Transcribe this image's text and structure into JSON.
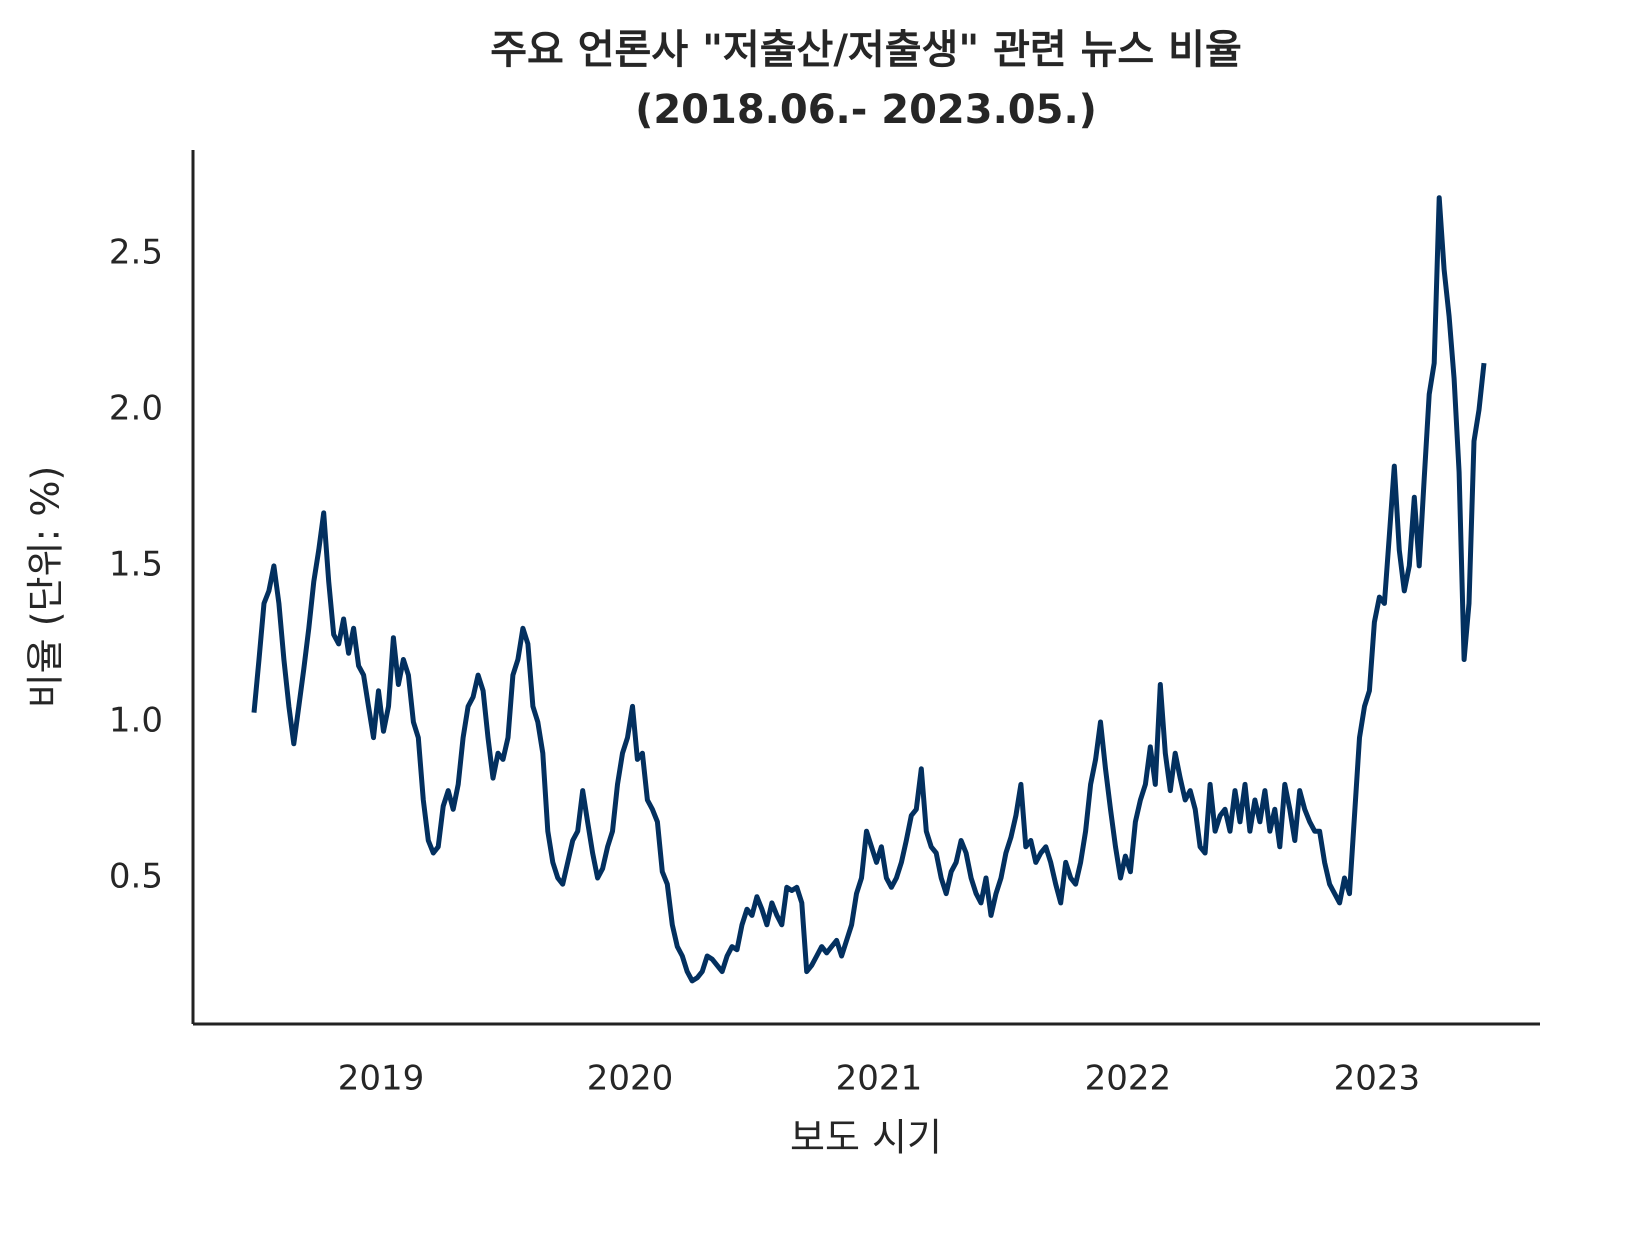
{
  "chart_data": {
    "type": "line",
    "title": "주요 언론사 \"저출산/저출생\" 관련 뉴스 비율",
    "subtitle": "(2018.06.- 2023.05.)",
    "x_label": "보도 시기",
    "y_label": "비율 (단위: %)",
    "color": "#03305f",
    "xlim": [
      2018.245,
      2023.655
    ],
    "xticks": [
      2019,
      2020,
      2021,
      2022,
      2023
    ],
    "ylim": [
      0.032,
      2.833
    ],
    "yticks": [
      0.5,
      {
        "value": 1,
        "label": "1.0"
      },
      1.5,
      {
        "value": 2,
        "label": "2.0"
      },
      2.5
    ],
    "grid": false,
    "x": [
      2018.49,
      2018.51,
      2018.53,
      2018.55,
      2018.57,
      2018.59,
      2018.61,
      2018.63,
      2018.65,
      2018.67,
      2018.69,
      2018.71,
      2018.73,
      2018.75,
      2018.77,
      2018.79,
      2018.81,
      2018.83,
      2018.85,
      2018.87,
      2018.89,
      2018.91,
      2018.93,
      2018.95,
      2018.97,
      2018.99,
      2019.01,
      2019.03,
      2019.05,
      2019.07,
      2019.09,
      2019.11,
      2019.13,
      2019.15,
      2019.17,
      2019.19,
      2019.21,
      2019.23,
      2019.25,
      2019.27,
      2019.29,
      2019.31,
      2019.33,
      2019.35,
      2019.37,
      2019.39,
      2019.41,
      2019.43,
      2019.45,
      2019.47,
      2019.49,
      2019.51,
      2019.53,
      2019.55,
      2019.57,
      2019.59,
      2019.61,
      2019.63,
      2019.65,
      2019.67,
      2019.69,
      2019.71,
      2019.73,
      2019.75,
      2019.77,
      2019.79,
      2019.81,
      2019.83,
      2019.85,
      2019.87,
      2019.89,
      2019.91,
      2019.93,
      2019.95,
      2019.97,
      2019.99,
      2020.01,
      2020.03,
      2020.05,
      2020.07,
      2020.09,
      2020.11,
      2020.13,
      2020.15,
      2020.17,
      2020.19,
      2020.21,
      2020.23,
      2020.25,
      2020.27,
      2020.29,
      2020.31,
      2020.33,
      2020.35,
      2020.37,
      2020.39,
      2020.41,
      2020.43,
      2020.45,
      2020.47,
      2020.49,
      2020.51,
      2020.53,
      2020.55,
      2020.57,
      2020.59,
      2020.61,
      2020.63,
      2020.65,
      2020.67,
      2020.69,
      2020.71,
      2020.73,
      2020.75,
      2020.77,
      2020.79,
      2020.81,
      2020.83,
      2020.85,
      2020.87,
      2020.89,
      2020.91,
      2020.93,
      2020.95,
      2020.97,
      2020.99,
      2021.01,
      2021.03,
      2021.05,
      2021.07,
      2021.09,
      2021.11,
      2021.13,
      2021.15,
      2021.17,
      2021.19,
      2021.21,
      2021.23,
      2021.25,
      2021.27,
      2021.29,
      2021.31,
      2021.33,
      2021.35,
      2021.37,
      2021.39,
      2021.41,
      2021.43,
      2021.45,
      2021.47,
      2021.49,
      2021.51,
      2021.53,
      2021.55,
      2021.57,
      2021.59,
      2021.61,
      2021.63,
      2021.65,
      2021.67,
      2021.69,
      2021.71,
      2021.73,
      2021.75,
      2021.77,
      2021.79,
      2021.81,
      2021.83,
      2021.85,
      2021.87,
      2021.89,
      2021.91,
      2021.93,
      2021.95,
      2021.97,
      2021.99,
      2022.01,
      2022.03,
      2022.05,
      2022.07,
      2022.09,
      2022.11,
      2022.13,
      2022.15,
      2022.17,
      2022.19,
      2022.21,
      2022.23,
      2022.25,
      2022.27,
      2022.29,
      2022.31,
      2022.33,
      2022.35,
      2022.37,
      2022.39,
      2022.41,
      2022.43,
      2022.45,
      2022.47,
      2022.49,
      2022.51,
      2022.53,
      2022.55,
      2022.57,
      2022.59,
      2022.61,
      2022.63,
      2022.65,
      2022.67,
      2022.69,
      2022.71,
      2022.73,
      2022.75,
      2022.77,
      2022.79,
      2022.81,
      2022.83,
      2022.85,
      2022.87,
      2022.89,
      2022.91,
      2022.93,
      2022.95,
      2022.97,
      2022.99,
      2023.01,
      2023.03,
      2023.05,
      2023.07,
      2023.09,
      2023.11,
      2023.13,
      2023.15,
      2023.17,
      2023.19,
      2023.21,
      2023.23,
      2023.25,
      2023.27,
      2023.29,
      2023.31,
      2023.33,
      2023.35,
      2023.37,
      2023.39,
      2023.41,
      2023.43
    ],
    "values": [
      1.03,
      1.2,
      1.38,
      1.42,
      1.5,
      1.38,
      1.2,
      1.05,
      0.93,
      1.05,
      1.17,
      1.3,
      1.45,
      1.55,
      1.67,
      1.45,
      1.28,
      1.25,
      1.33,
      1.22,
      1.3,
      1.18,
      1.15,
      1.05,
      0.95,
      1.1,
      0.97,
      1.05,
      1.27,
      1.12,
      1.2,
      1.15,
      1.0,
      0.95,
      0.75,
      0.62,
      0.58,
      0.6,
      0.73,
      0.78,
      0.72,
      0.8,
      0.95,
      1.05,
      1.08,
      1.15,
      1.1,
      0.95,
      0.82,
      0.9,
      0.88,
      0.95,
      1.15,
      1.2,
      1.3,
      1.25,
      1.05,
      1.0,
      0.9,
      0.65,
      0.55,
      0.5,
      0.48,
      0.55,
      0.62,
      0.65,
      0.78,
      0.68,
      0.58,
      0.5,
      0.53,
      0.6,
      0.65,
      0.8,
      0.9,
      0.95,
      1.05,
      0.88,
      0.9,
      0.75,
      0.72,
      0.68,
      0.52,
      0.48,
      0.35,
      0.28,
      0.25,
      0.2,
      0.17,
      0.18,
      0.2,
      0.25,
      0.24,
      0.22,
      0.2,
      0.25,
      0.28,
      0.27,
      0.35,
      0.4,
      0.38,
      0.44,
      0.4,
      0.35,
      0.42,
      0.38,
      0.35,
      0.47,
      0.46,
      0.47,
      0.42,
      0.2,
      0.22,
      0.25,
      0.28,
      0.26,
      0.28,
      0.3,
      0.25,
      0.3,
      0.35,
      0.45,
      0.5,
      0.65,
      0.6,
      0.55,
      0.6,
      0.5,
      0.47,
      0.5,
      0.55,
      0.62,
      0.7,
      0.72,
      0.85,
      0.65,
      0.6,
      0.58,
      0.5,
      0.45,
      0.52,
      0.55,
      0.62,
      0.58,
      0.5,
      0.45,
      0.42,
      0.5,
      0.38,
      0.45,
      0.5,
      0.58,
      0.63,
      0.7,
      0.8,
      0.6,
      0.62,
      0.55,
      0.58,
      0.6,
      0.55,
      0.48,
      0.42,
      0.55,
      0.5,
      0.48,
      0.55,
      0.65,
      0.8,
      0.88,
      1.0,
      0.85,
      0.72,
      0.6,
      0.5,
      0.57,
      0.52,
      0.68,
      0.75,
      0.8,
      0.92,
      0.8,
      1.12,
      0.9,
      0.78,
      0.9,
      0.82,
      0.75,
      0.78,
      0.72,
      0.6,
      0.58,
      0.8,
      0.65,
      0.7,
      0.72,
      0.65,
      0.78,
      0.68,
      0.8,
      0.65,
      0.75,
      0.68,
      0.78,
      0.65,
      0.72,
      0.6,
      0.8,
      0.72,
      0.62,
      0.78,
      0.72,
      0.68,
      0.65,
      0.65,
      0.55,
      0.48,
      0.45,
      0.42,
      0.5,
      0.45,
      0.7,
      0.95,
      1.05,
      1.1,
      1.32,
      1.4,
      1.38,
      1.6,
      1.82,
      1.55,
      1.42,
      1.5,
      1.72,
      1.5,
      1.78,
      2.05,
      2.15,
      2.68,
      2.45,
      2.3,
      2.1,
      1.8,
      1.2,
      1.38,
      1.9,
      2.0,
      2.15
    ]
  }
}
